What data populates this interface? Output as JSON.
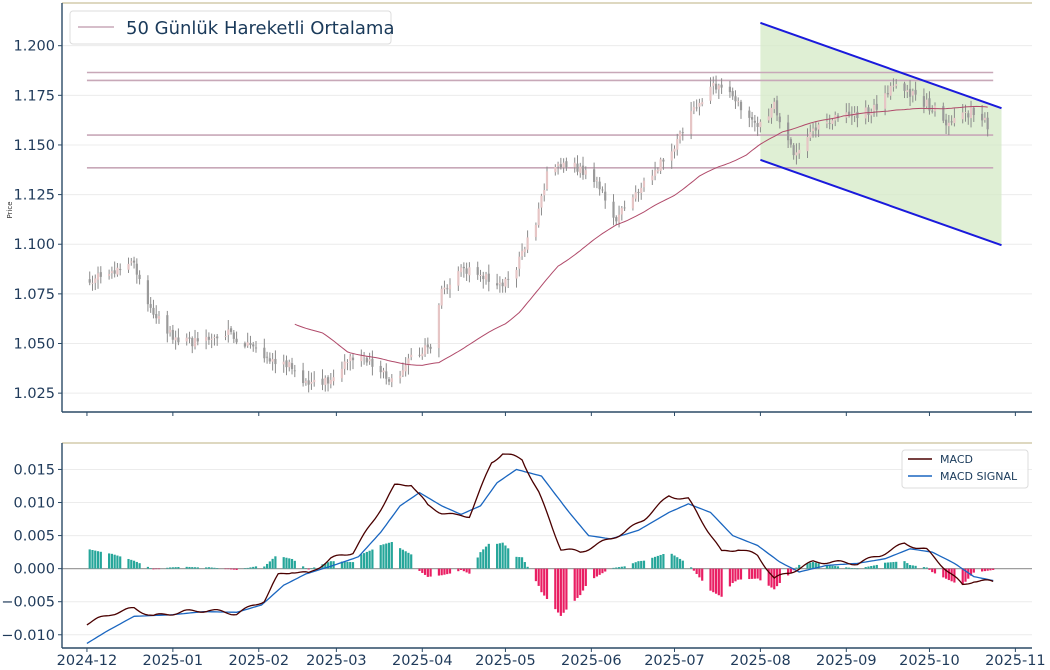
{
  "chart_data": [
    {
      "type": "candlestick",
      "ylabel": "Price",
      "ylim": [
        1.0155,
        1.2215
      ],
      "y_ticks": [
        "1.025",
        "1.050",
        "1.075",
        "1.100",
        "1.125",
        "1.150",
        "1.175",
        "1.200"
      ],
      "x_ticks": [
        "2024-12",
        "2025-01",
        "2025-02",
        "2025-03",
        "2025-04",
        "2025-05",
        "2025-06",
        "2025-07",
        "2025-08",
        "2025-09",
        "2025-10",
        "2025-11"
      ],
      "xlim": [
        "2024-11-22",
        "2025-11-07"
      ],
      "legend": {
        "placement": "top-left",
        "entries": [
          "50 Günlük Hareketli Ortalama"
        ]
      },
      "close_anchors": [
        [
          "2024-12-01",
          1.082
        ],
        [
          "2024-12-12",
          1.086
        ],
        [
          "2024-12-18",
          1.09
        ],
        [
          "2024-12-24",
          1.068
        ],
        [
          "2024-12-31",
          1.055
        ],
        [
          "2025-01-07",
          1.05
        ],
        [
          "2025-01-14",
          1.053
        ],
        [
          "2025-01-21",
          1.055
        ],
        [
          "2025-01-28",
          1.05
        ],
        [
          "2025-02-05",
          1.042
        ],
        [
          "2025-02-12",
          1.04
        ],
        [
          "2025-02-18",
          1.031
        ],
        [
          "2025-02-24",
          1.03
        ],
        [
          "2025-03-03",
          1.038
        ],
        [
          "2025-03-10",
          1.046
        ],
        [
          "2025-03-16",
          1.036
        ],
        [
          "2025-03-22",
          1.03
        ],
        [
          "2025-03-28",
          1.042
        ],
        [
          "2025-04-05",
          1.05
        ],
        [
          "2025-04-08",
          1.076
        ],
        [
          "2025-04-15",
          1.088
        ],
        [
          "2025-04-21",
          1.086
        ],
        [
          "2025-04-28",
          1.078
        ],
        [
          "2025-05-03",
          1.082
        ],
        [
          "2025-05-08",
          1.1
        ],
        [
          "2025-05-12",
          1.112
        ],
        [
          "2025-05-16",
          1.135
        ],
        [
          "2025-05-22",
          1.14
        ],
        [
          "2025-05-28",
          1.138
        ],
        [
          "2025-06-03",
          1.13
        ],
        [
          "2025-06-10",
          1.113
        ],
        [
          "2025-06-17",
          1.125
        ],
        [
          "2025-06-24",
          1.138
        ],
        [
          "2025-07-01",
          1.15
        ],
        [
          "2025-07-07",
          1.165
        ],
        [
          "2025-07-14",
          1.18
        ],
        [
          "2025-07-18",
          1.178
        ],
        [
          "2025-07-25",
          1.17
        ],
        [
          "2025-07-31",
          1.16
        ],
        [
          "2025-08-06",
          1.17
        ],
        [
          "2025-08-10",
          1.153
        ],
        [
          "2025-08-14",
          1.145
        ],
        [
          "2025-08-20",
          1.158
        ],
        [
          "2025-08-28",
          1.165
        ],
        [
          "2025-09-05",
          1.165
        ],
        [
          "2025-09-11",
          1.168
        ],
        [
          "2025-09-17",
          1.18
        ],
        [
          "2025-09-22",
          1.178
        ],
        [
          "2025-09-28",
          1.172
        ],
        [
          "2025-10-03",
          1.168
        ],
        [
          "2025-10-08",
          1.16
        ],
        [
          "2025-10-13",
          1.165
        ],
        [
          "2025-10-18",
          1.168
        ],
        [
          "2025-10-22",
          1.16
        ]
      ],
      "moving_average_50": [
        [
          "2025-02-14",
          1.06
        ],
        [
          "2025-02-24",
          1.055
        ],
        [
          "2025-03-05",
          1.046
        ],
        [
          "2025-03-20",
          1.041
        ],
        [
          "2025-04-01",
          1.039
        ],
        [
          "2025-04-07",
          1.04
        ],
        [
          "2025-04-17",
          1.049
        ],
        [
          "2025-05-01",
          1.06
        ],
        [
          "2025-05-06",
          1.066
        ],
        [
          "2025-05-13",
          1.077
        ],
        [
          "2025-05-20",
          1.089
        ],
        [
          "2025-05-31",
          1.1
        ],
        [
          "2025-06-10",
          1.11
        ],
        [
          "2025-06-20",
          1.116
        ],
        [
          "2025-07-01",
          1.125
        ],
        [
          "2025-07-10",
          1.134
        ],
        [
          "2025-07-17",
          1.139
        ],
        [
          "2025-07-27",
          1.145
        ],
        [
          "2025-08-01",
          1.15
        ],
        [
          "2025-08-09",
          1.157
        ],
        [
          "2025-08-20",
          1.161
        ],
        [
          "2025-08-31",
          1.165
        ],
        [
          "2025-09-10",
          1.166
        ],
        [
          "2025-09-19",
          1.168
        ],
        [
          "2025-09-30",
          1.168
        ],
        [
          "2025-10-10",
          1.169
        ],
        [
          "2025-10-22",
          1.169
        ]
      ],
      "horizontal_levels": [
        1.1865,
        1.1825,
        1.155,
        1.1385
      ],
      "horizontal_levels_range": [
        "2024-12-01",
        "2025-10-24"
      ],
      "channel": {
        "upper": [
          [
            "2025-08-01",
            1.2115
          ],
          [
            "2025-10-27",
            1.1685
          ]
        ],
        "lower": [
          [
            "2025-08-01",
            1.1425
          ],
          [
            "2025-10-27",
            1.0995
          ]
        ]
      },
      "colors": {
        "candle": "#8b8b8b",
        "moving_average": "#b04a6a",
        "levels": "#c8a8b8",
        "channel_line": "#1a1adc",
        "channel_fill": "#d4e9c6"
      }
    },
    {
      "type": "line",
      "ylim": [
        -0.012,
        0.019
      ],
      "y_ticks": [
        "−0.010",
        "−0.005",
        "0.000",
        "0.005",
        "0.010",
        "0.015"
      ],
      "legend": {
        "placement": "top-right",
        "entries": [
          "MACD",
          "MACD SIGNAL"
        ]
      },
      "series": [
        {
          "name": "MACD",
          "color": "#4a0000",
          "points": [
            [
              "2024-12-01",
              -0.0083
            ],
            [
              "2024-12-10",
              -0.0068
            ],
            [
              "2024-12-18",
              -0.006
            ],
            [
              "2024-12-25",
              -0.0072
            ],
            [
              "2025-01-05",
              -0.0065
            ],
            [
              "2025-01-14",
              -0.0063
            ],
            [
              "2025-01-24",
              -0.0068
            ],
            [
              "2025-02-03",
              -0.0048
            ],
            [
              "2025-02-08",
              -0.001
            ],
            [
              "2025-02-13",
              -0.0004
            ],
            [
              "2025-02-19",
              -0.0008
            ],
            [
              "2025-02-27",
              0.0015
            ],
            [
              "2025-03-07",
              0.0025
            ],
            [
              "2025-03-14",
              0.007
            ],
            [
              "2025-03-22",
              0.0125
            ],
            [
              "2025-03-28",
              0.0128
            ],
            [
              "2025-04-03",
              0.0095
            ],
            [
              "2025-04-08",
              0.0085
            ],
            [
              "2025-04-13",
              0.008
            ],
            [
              "2025-04-18",
              0.008
            ],
            [
              "2025-04-26",
              0.016
            ],
            [
              "2025-04-30",
              0.0175
            ],
            [
              "2025-05-07",
              0.0165
            ],
            [
              "2025-05-13",
              0.0115
            ],
            [
              "2025-05-21",
              0.003
            ],
            [
              "2025-05-28",
              0.0025
            ],
            [
              "2025-06-05",
              0.004
            ],
            [
              "2025-06-13",
              0.0055
            ],
            [
              "2025-06-20",
              0.0075
            ],
            [
              "2025-06-29",
              0.011
            ],
            [
              "2025-07-06",
              0.0105
            ],
            [
              "2025-07-12",
              0.0065
            ],
            [
              "2025-07-18",
              0.0025
            ],
            [
              "2025-07-24",
              0.003
            ],
            [
              "2025-07-31",
              0.002
            ],
            [
              "2025-08-06",
              -0.0015
            ],
            [
              "2025-08-12",
              -0.0005
            ],
            [
              "2025-08-20",
              0.001
            ],
            [
              "2025-08-27",
              0.001
            ],
            [
              "2025-09-05",
              0.0008
            ],
            [
              "2025-09-13",
              0.002
            ],
            [
              "2025-09-22",
              0.0038
            ],
            [
              "2025-09-30",
              0.0028
            ],
            [
              "2025-10-08",
              -0.0005
            ],
            [
              "2025-10-13",
              -0.0025
            ],
            [
              "2025-10-17",
              -0.0018
            ],
            [
              "2025-10-24",
              -0.002
            ]
          ]
        },
        {
          "name": "MACD SIGNAL",
          "color": "#1a66c0",
          "points": [
            [
              "2024-12-01",
              -0.0113
            ],
            [
              "2024-12-08",
              -0.0095
            ],
            [
              "2024-12-18",
              -0.0072
            ],
            [
              "2024-12-31",
              -0.007
            ],
            [
              "2025-01-12",
              -0.0065
            ],
            [
              "2025-01-24",
              -0.0066
            ],
            [
              "2025-02-02",
              -0.0055
            ],
            [
              "2025-02-10",
              -0.0025
            ],
            [
              "2025-02-18",
              -0.0008
            ],
            [
              "2025-02-28",
              0.0005
            ],
            [
              "2025-03-09",
              0.0018
            ],
            [
              "2025-03-17",
              0.0055
            ],
            [
              "2025-03-24",
              0.0095
            ],
            [
              "2025-03-31",
              0.0115
            ],
            [
              "2025-04-08",
              0.0095
            ],
            [
              "2025-04-15",
              0.0082
            ],
            [
              "2025-04-22",
              0.0095
            ],
            [
              "2025-04-28",
              0.013
            ],
            [
              "2025-05-05",
              0.015
            ],
            [
              "2025-05-14",
              0.014
            ],
            [
              "2025-05-24",
              0.0085
            ],
            [
              "2025-05-31",
              0.005
            ],
            [
              "2025-06-08",
              0.0045
            ],
            [
              "2025-06-18",
              0.0058
            ],
            [
              "2025-06-29",
              0.0085
            ],
            [
              "2025-07-06",
              0.0098
            ],
            [
              "2025-07-14",
              0.0085
            ],
            [
              "2025-07-22",
              0.005
            ],
            [
              "2025-07-31",
              0.0035
            ],
            [
              "2025-08-08",
              0.001
            ],
            [
              "2025-08-15",
              -0.0005
            ],
            [
              "2025-08-25",
              0.0005
            ],
            [
              "2025-09-05",
              0.0008
            ],
            [
              "2025-09-15",
              0.0015
            ],
            [
              "2025-09-24",
              0.003
            ],
            [
              "2025-10-02",
              0.0025
            ],
            [
              "2025-10-10",
              0.0008
            ],
            [
              "2025-10-17",
              -0.0012
            ],
            [
              "2025-10-24",
              -0.0018
            ]
          ]
        }
      ],
      "histogram_colors": {
        "positive": "#26a69a",
        "negative": "#e91e63"
      },
      "colors": {
        "zero_line": "#9e9e9e",
        "frame": "#2b4a66"
      }
    }
  ]
}
